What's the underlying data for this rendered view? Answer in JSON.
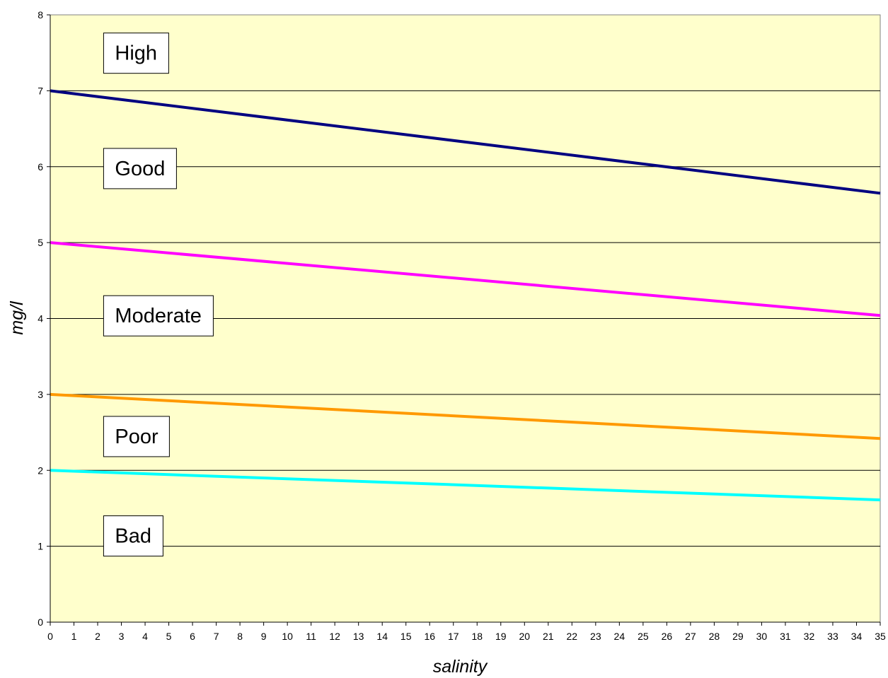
{
  "chart_data": {
    "type": "line",
    "title": "",
    "xlabel": "salinity",
    "ylabel": "mg/l",
    "xlim": [
      0,
      35
    ],
    "ylim": [
      0,
      8
    ],
    "x_ticks": [
      0,
      1,
      2,
      3,
      4,
      5,
      6,
      7,
      8,
      9,
      10,
      11,
      12,
      13,
      14,
      15,
      16,
      17,
      18,
      19,
      20,
      21,
      22,
      23,
      24,
      25,
      26,
      27,
      28,
      29,
      30,
      31,
      32,
      33,
      34,
      35
    ],
    "y_ticks": [
      0,
      1,
      2,
      3,
      4,
      5,
      6,
      7,
      8
    ],
    "grid": "horizontal",
    "plot_background": "#FFFFCC",
    "legend": "none",
    "series": [
      {
        "color": "#000080",
        "x": [
          0,
          35
        ],
        "y": [
          7.0,
          5.65
        ]
      },
      {
        "color": "#FF00FF",
        "x": [
          0,
          35
        ],
        "y": [
          5.0,
          4.04
        ]
      },
      {
        "color": "#FF9900",
        "x": [
          0,
          35
        ],
        "y": [
          3.0,
          2.42
        ]
      },
      {
        "color": "#00FFFF",
        "x": [
          0,
          35
        ],
        "y": [
          2.0,
          1.61
        ]
      }
    ],
    "annotations": [
      {
        "text": "High",
        "x": 2.25,
        "y": 7.5
      },
      {
        "text": "Good",
        "x": 2.25,
        "y": 5.98
      },
      {
        "text": "Moderate",
        "x": 2.25,
        "y": 4.04
      },
      {
        "text": "Poor",
        "x": 2.25,
        "y": 2.45
      },
      {
        "text": "Bad",
        "x": 2.25,
        "y": 1.14
      }
    ]
  }
}
